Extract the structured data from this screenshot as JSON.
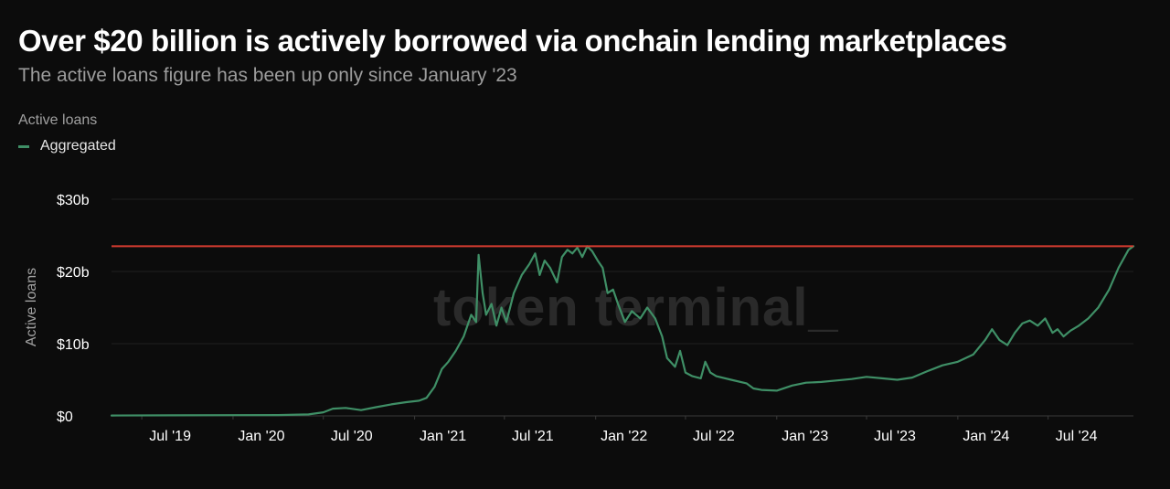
{
  "chart_data": {
    "type": "line",
    "title": "Over $20 billion is actively borrowed via onchain lending marketplaces",
    "subtitle": "The active loans figure has been up only since January '23",
    "legend_title": "Active loans",
    "ylabel": "Active loans",
    "watermark": "token terminal_",
    "ylim": [
      0,
      30
    ],
    "y_ticks": [
      {
        "value": 0,
        "label": "$0"
      },
      {
        "value": 10,
        "label": "$10b"
      },
      {
        "value": 20,
        "label": "$20b"
      },
      {
        "value": 30,
        "label": "$30b"
      }
    ],
    "x_range": [
      "2019-05-01",
      "2024-12-20"
    ],
    "x_ticks": [
      {
        "date": "2019-07-01",
        "label": "Jul '19"
      },
      {
        "date": "2020-01-01",
        "label": "Jan '20"
      },
      {
        "date": "2020-07-01",
        "label": "Jul '20"
      },
      {
        "date": "2021-01-01",
        "label": "Jan '21"
      },
      {
        "date": "2021-07-01",
        "label": "Jul '21"
      },
      {
        "date": "2022-01-01",
        "label": "Jan '22"
      },
      {
        "date": "2022-07-01",
        "label": "Jul '22"
      },
      {
        "date": "2023-01-01",
        "label": "Jan '23"
      },
      {
        "date": "2023-07-01",
        "label": "Jul '23"
      },
      {
        "date": "2024-01-01",
        "label": "Jan '24"
      },
      {
        "date": "2024-07-01",
        "label": "Jul '24"
      }
    ],
    "grid": true,
    "legend_placement": "top-left",
    "reference_line": {
      "value": 23.5,
      "color": "#d63b30"
    },
    "series": [
      {
        "name": "Aggregated",
        "color": "#3f8f66",
        "points": [
          [
            "2019-05-01",
            0.05
          ],
          [
            "2019-09-01",
            0.08
          ],
          [
            "2020-01-01",
            0.1
          ],
          [
            "2020-04-01",
            0.12
          ],
          [
            "2020-06-01",
            0.2
          ],
          [
            "2020-07-01",
            0.5
          ],
          [
            "2020-07-20",
            1.0
          ],
          [
            "2020-08-15",
            1.1
          ],
          [
            "2020-09-15",
            0.8
          ],
          [
            "2020-10-15",
            1.2
          ],
          [
            "2020-11-15",
            1.6
          ],
          [
            "2020-12-15",
            1.9
          ],
          [
            "2021-01-10",
            2.1
          ],
          [
            "2021-01-25",
            2.5
          ],
          [
            "2021-02-10",
            4.0
          ],
          [
            "2021-02-25",
            6.5
          ],
          [
            "2021-03-10",
            7.5
          ],
          [
            "2021-03-25",
            9.0
          ],
          [
            "2021-04-10",
            11.0
          ],
          [
            "2021-04-25",
            14.0
          ],
          [
            "2021-05-05",
            13.0
          ],
          [
            "2021-05-10",
            22.3
          ],
          [
            "2021-05-18",
            17.0
          ],
          [
            "2021-05-25",
            14.0
          ],
          [
            "2021-06-05",
            15.5
          ],
          [
            "2021-06-15",
            12.5
          ],
          [
            "2021-06-25",
            15.0
          ],
          [
            "2021-07-05",
            13.0
          ],
          [
            "2021-07-20",
            17.0
          ],
          [
            "2021-08-05",
            19.5
          ],
          [
            "2021-08-20",
            21.0
          ],
          [
            "2021-09-01",
            22.5
          ],
          [
            "2021-09-10",
            19.5
          ],
          [
            "2021-09-20",
            21.5
          ],
          [
            "2021-10-01",
            20.5
          ],
          [
            "2021-10-15",
            18.5
          ],
          [
            "2021-10-25",
            22.0
          ],
          [
            "2021-11-05",
            23.0
          ],
          [
            "2021-11-15",
            22.5
          ],
          [
            "2021-11-25",
            23.3
          ],
          [
            "2021-12-05",
            22.0
          ],
          [
            "2021-12-15",
            23.5
          ],
          [
            "2021-12-25",
            22.8
          ],
          [
            "2022-01-05",
            21.5
          ],
          [
            "2022-01-15",
            20.5
          ],
          [
            "2022-01-25",
            17.0
          ],
          [
            "2022-02-05",
            17.5
          ],
          [
            "2022-02-15",
            15.5
          ],
          [
            "2022-03-01",
            13.0
          ],
          [
            "2022-03-15",
            14.5
          ],
          [
            "2022-04-01",
            13.5
          ],
          [
            "2022-04-15",
            15.0
          ],
          [
            "2022-05-01",
            13.5
          ],
          [
            "2022-05-15",
            11.0
          ],
          [
            "2022-05-25",
            8.0
          ],
          [
            "2022-06-10",
            6.8
          ],
          [
            "2022-06-20",
            9.0
          ],
          [
            "2022-07-01",
            6.0
          ],
          [
            "2022-07-15",
            5.5
          ],
          [
            "2022-08-01",
            5.2
          ],
          [
            "2022-08-10",
            7.5
          ],
          [
            "2022-08-20",
            6.0
          ],
          [
            "2022-09-01",
            5.5
          ],
          [
            "2022-10-01",
            5.0
          ],
          [
            "2022-11-01",
            4.5
          ],
          [
            "2022-11-15",
            3.8
          ],
          [
            "2022-12-01",
            3.6
          ],
          [
            "2023-01-01",
            3.5
          ],
          [
            "2023-02-01",
            4.2
          ],
          [
            "2023-03-01",
            4.6
          ],
          [
            "2023-04-01",
            4.7
          ],
          [
            "2023-05-01",
            4.9
          ],
          [
            "2023-06-01",
            5.1
          ],
          [
            "2023-07-01",
            5.4
          ],
          [
            "2023-08-01",
            5.2
          ],
          [
            "2023-09-01",
            5.0
          ],
          [
            "2023-10-01",
            5.3
          ],
          [
            "2023-11-01",
            6.2
          ],
          [
            "2023-12-01",
            7.0
          ],
          [
            "2024-01-01",
            7.5
          ],
          [
            "2024-02-01",
            8.5
          ],
          [
            "2024-02-25",
            10.5
          ],
          [
            "2024-03-10",
            12.0
          ],
          [
            "2024-03-25",
            10.5
          ],
          [
            "2024-04-10",
            9.8
          ],
          [
            "2024-04-25",
            11.5
          ],
          [
            "2024-05-10",
            12.8
          ],
          [
            "2024-05-25",
            13.2
          ],
          [
            "2024-06-10",
            12.5
          ],
          [
            "2024-06-25",
            13.5
          ],
          [
            "2024-07-10",
            11.5
          ],
          [
            "2024-07-20",
            12.0
          ],
          [
            "2024-08-01",
            11.0
          ],
          [
            "2024-08-15",
            11.8
          ],
          [
            "2024-09-01",
            12.5
          ],
          [
            "2024-09-20",
            13.5
          ],
          [
            "2024-10-10",
            15.0
          ],
          [
            "2024-11-01",
            17.5
          ],
          [
            "2024-11-20",
            20.5
          ],
          [
            "2024-12-10",
            23.0
          ],
          [
            "2024-12-20",
            23.5
          ]
        ]
      }
    ]
  }
}
